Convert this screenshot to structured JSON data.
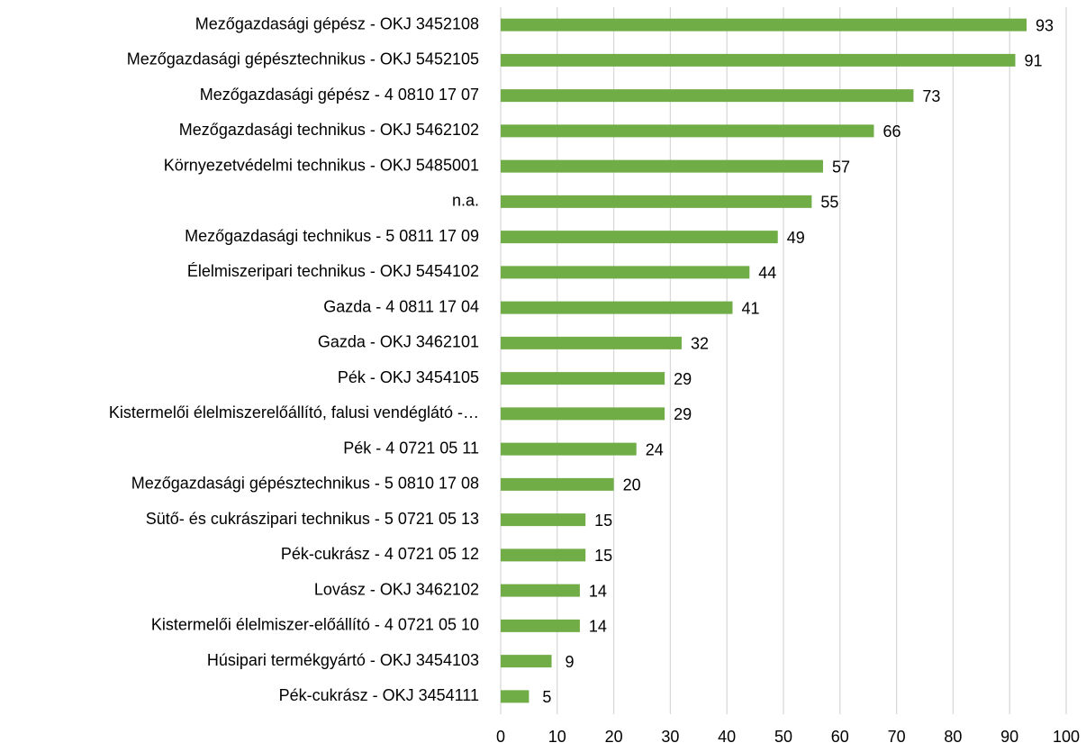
{
  "chart_data": {
    "type": "bar",
    "orientation": "horizontal",
    "categories": [
      "Mezőgazdasági gépész - OKJ 3452108",
      "Mezőgazdasági gépésztechnikus - OKJ 5452105",
      "Mezőgazdasági gépész - 4 0810 17 07",
      "Mezőgazdasági technikus - OKJ 5462102",
      "Környezetvédelmi technikus - OKJ 5485001",
      "n.a.",
      "Mezőgazdasági technikus - 5 0811 17 09",
      "Élelmiszeripari technikus - OKJ 5454102",
      "Gazda - 4 0811 17 04",
      "Gazda - OKJ 3462101",
      "Pék - OKJ 3454105",
      "Kistermelői élelmiszerelőállító, falusi vendéglátó -…",
      "Pék - 4 0721 05 11",
      "Mezőgazdasági gépésztechnikus - 5 0810 17 08",
      "Sütő- és cukrászipari technikus - 5 0721 05 13",
      "Pék-cukrász - 4 0721 05 12",
      "Lovász - OKJ 3462102",
      "Kistermelői élelmiszer-előállító - 4 0721 05 10",
      "Húsipari termékgyártó - OKJ 3454103",
      "Pék-cukrász - OKJ 3454111"
    ],
    "values": [
      93,
      91,
      73,
      66,
      57,
      55,
      49,
      44,
      41,
      32,
      29,
      29,
      24,
      20,
      15,
      15,
      14,
      14,
      9,
      5
    ],
    "color": "#70ad47",
    "xlim": [
      0,
      100
    ],
    "xticks": [
      0,
      10,
      20,
      30,
      40,
      50,
      60,
      70,
      80,
      90,
      100
    ],
    "grid": true
  }
}
